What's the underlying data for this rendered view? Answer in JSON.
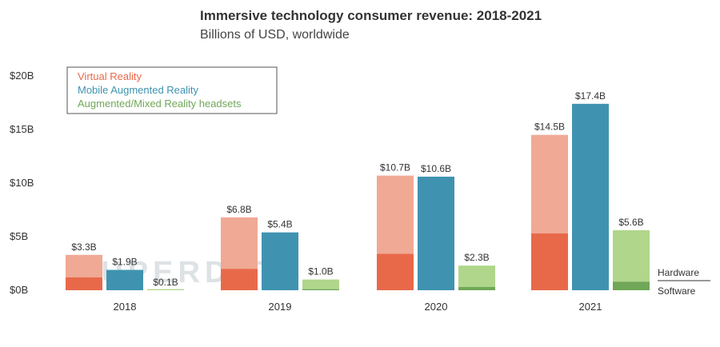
{
  "chart_data": {
    "type": "bar",
    "title": "Immersive technology consumer revenue: 2018-2021",
    "subtitle": "Billions of USD, worldwide",
    "categories": [
      "2018",
      "2019",
      "2020",
      "2021"
    ],
    "ylim": [
      0,
      20
    ],
    "yticks": [
      0,
      5,
      10,
      15,
      20
    ],
    "ytick_labels": [
      "$0B",
      "$5B",
      "$10B",
      "$15B",
      "$20B"
    ],
    "series": [
      {
        "name": "Virtual Reality",
        "values": [
          3.3,
          6.8,
          10.7,
          14.5
        ],
        "software": [
          1.2,
          2.0,
          3.4,
          5.3
        ],
        "labels": [
          "$3.3B",
          "$6.8B",
          "$10.7B",
          "$14.5B"
        ],
        "color": "#e8694a",
        "hardware_color": "#f0a994"
      },
      {
        "name": "Mobile Augmented Reality",
        "values": [
          1.9,
          5.4,
          10.6,
          17.4
        ],
        "labels": [
          "$1.9B",
          "$5.4B",
          "$10.6B",
          "$17.4B"
        ],
        "color": "#3f93b0"
      },
      {
        "name": "Augmented/Mixed Reality headsets",
        "values": [
          0.1,
          1.0,
          2.3,
          5.6
        ],
        "software": [
          0.0,
          0.1,
          0.3,
          0.8
        ],
        "labels": [
          "$0.1B",
          "$1.0B",
          "$2.3B",
          "$5.6B"
        ],
        "color": "#70a758",
        "hardware_color": "#afd68a"
      }
    ],
    "annotations": {
      "hardware": "Hardware",
      "software": "Software"
    },
    "watermark": "SUPERDATA"
  }
}
